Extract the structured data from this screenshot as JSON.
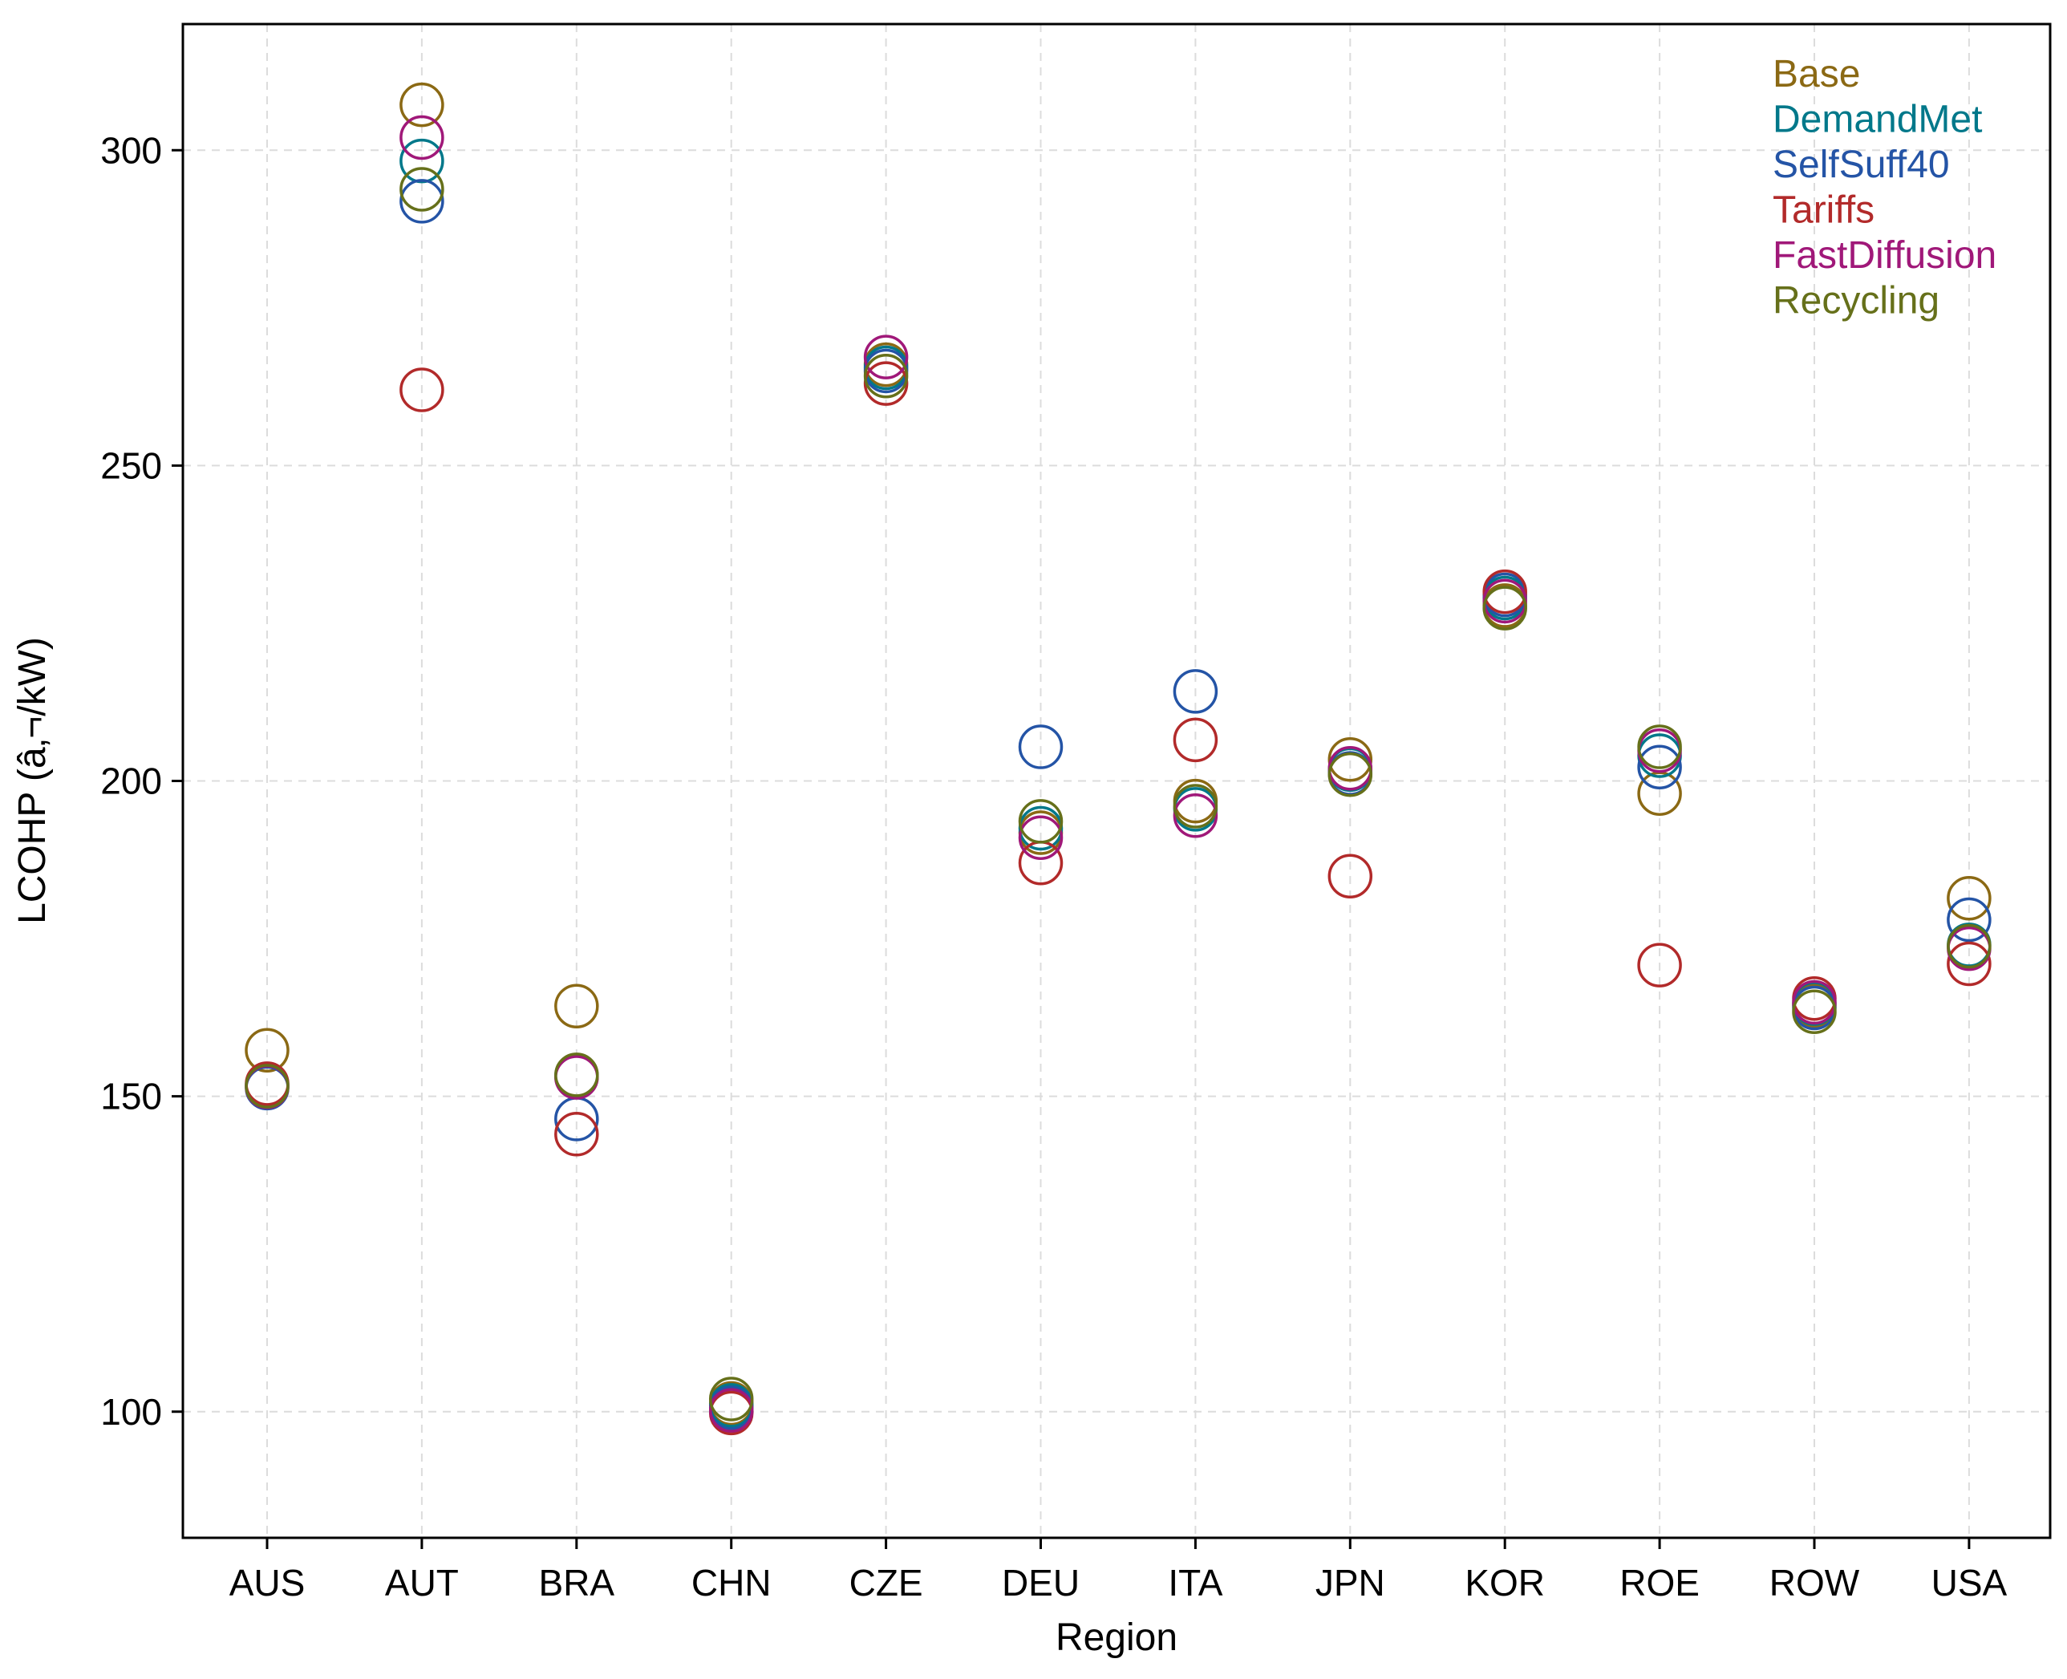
{
  "chart_data": {
    "type": "scatter",
    "title": "",
    "xlabel": "Region",
    "ylabel": "LCOHP (â‚¬/kW)",
    "categories": [
      "AUS",
      "AUT",
      "BRA",
      "CHN",
      "CZE",
      "DEU",
      "ITA",
      "JPN",
      "KOR",
      "ROE",
      "ROW",
      "USA"
    ],
    "yticks": [
      100,
      150,
      200,
      250,
      300
    ],
    "ylim": [
      80,
      320
    ],
    "grid": true,
    "legend_position": "top-right",
    "marker": "open-circle",
    "series": [
      {
        "name": "Base",
        "color": "#8B6914",
        "values": [
          157.3,
          307.2,
          164.3,
          101.3,
          266.0,
          191.8,
          196.8,
          203.4,
          227.8,
          198.0,
          164.4,
          181.4
        ]
      },
      {
        "name": "DemandMet",
        "color": "#00788A",
        "values": [
          151.8,
          298.3,
          153.2,
          101.0,
          265.5,
          192.5,
          195.5,
          201.8,
          229.0,
          204.0,
          164.7,
          174.0
        ]
      },
      {
        "name": "SelfSuff40",
        "color": "#2454A6",
        "values": [
          151.3,
          291.9,
          146.4,
          100.6,
          265.0,
          205.4,
          214.2,
          201.2,
          229.5,
          202.2,
          164.0,
          178.0
        ]
      },
      {
        "name": "Tariffs",
        "color": "#B22A2A",
        "values": [
          152.0,
          262.0,
          144.0,
          99.8,
          263.0,
          187.0,
          206.5,
          184.9,
          230.0,
          170.8,
          165.5,
          171.0
        ]
      },
      {
        "name": "FastDiffusion",
        "color": "#A01879",
        "values": [
          151.5,
          302.0,
          153.0,
          100.2,
          267.2,
          191.0,
          194.5,
          202.0,
          228.5,
          204.8,
          164.9,
          173.4
        ]
      },
      {
        "name": "Recycling",
        "color": "#66701A",
        "values": [
          151.6,
          293.8,
          153.4,
          102.0,
          264.2,
          193.6,
          196.0,
          201.0,
          227.4,
          205.4,
          163.4,
          173.8
        ]
      }
    ]
  }
}
